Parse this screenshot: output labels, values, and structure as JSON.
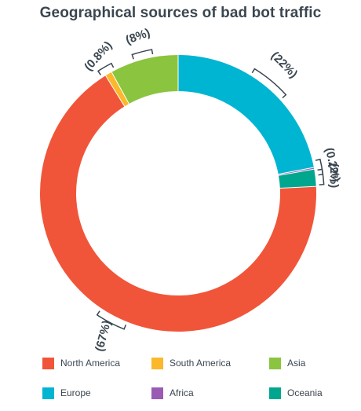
{
  "chart_data": {
    "type": "pie",
    "title": "Geographical sources of bad bot traffic",
    "style": "donut",
    "categories": [
      "North America",
      "South America",
      "Asia",
      "Europe",
      "Africa",
      "Oceania"
    ],
    "values": [
      67,
      0.8,
      8,
      22,
      0.2,
      2
    ],
    "data_labels": [
      "(67%)",
      "(0.8%)",
      "(8%)",
      "(22%)",
      "(0.2%)",
      "(2%)"
    ],
    "colors": [
      "#f15539",
      "#fbb82a",
      "#8bc43f",
      "#00b5d1",
      "#9a5bb4",
      "#00a78e"
    ],
    "legend_position": "bottom",
    "legend": [
      {
        "label": "North America",
        "color": "#f15539"
      },
      {
        "label": "South America",
        "color": "#fbb82a"
      },
      {
        "label": "Asia",
        "color": "#8bc43f"
      },
      {
        "label": "Europe",
        "color": "#00b5d1"
      },
      {
        "label": "Africa",
        "color": "#9a5bb4"
      },
      {
        "label": "Oceania",
        "color": "#00a78e"
      }
    ]
  }
}
